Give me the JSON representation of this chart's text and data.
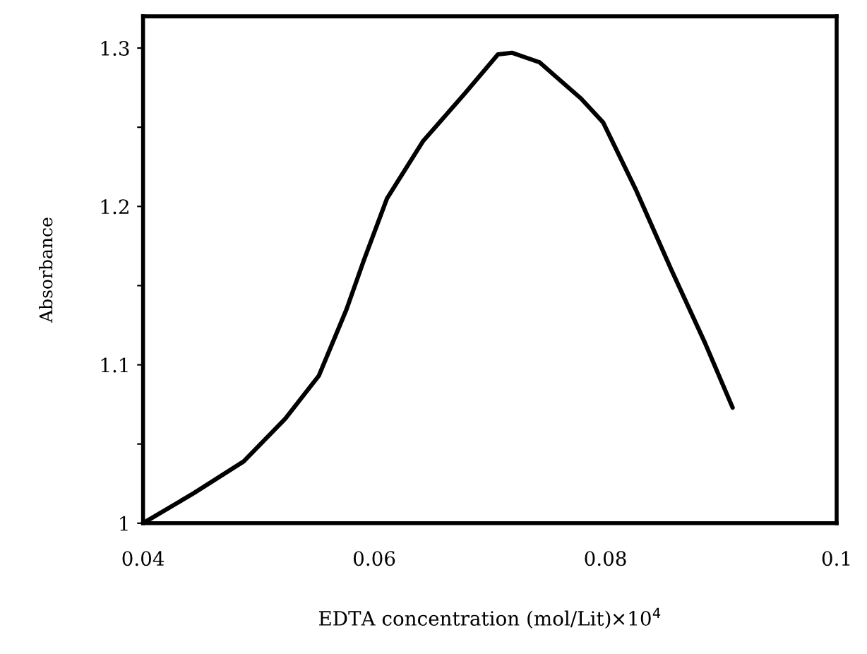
{
  "chart_data": {
    "type": "line",
    "xlabel": "EDTA concentration (mol/Lit)×10$^{4}$",
    "ylabel": "Absorbance",
    "x": [
      0.04,
      0.0444,
      0.0487,
      0.0523,
      0.0552,
      0.0576,
      0.0591,
      0.0611,
      0.0642,
      0.0678,
      0.0707,
      0.0719,
      0.0743,
      0.0779,
      0.0798,
      0.0826,
      0.0857,
      0.0886,
      0.091
    ],
    "series": [
      {
        "color": "#000000",
        "values": [
          1.0,
          1.019,
          1.039,
          1.066,
          1.093,
          1.135,
          1.166,
          1.205,
          1.241,
          1.271,
          1.296,
          1.297,
          1.291,
          1.268,
          1.253,
          1.211,
          1.16,
          1.114,
          1.073
        ]
      }
    ],
    "xlim": [
      0.04,
      0.1
    ],
    "xticks": [
      0.04,
      0.06,
      0.08,
      0.1
    ],
    "ylim": [
      1,
      1.32
    ],
    "yticks": [
      1,
      {
        "value": 1.05,
        "label": null
      },
      1.1,
      {
        "value": 1.15,
        "label": null
      },
      1.2,
      {
        "value": 1.25,
        "label": null
      },
      1.3
    ],
    "grid": false,
    "legend": false,
    "marker": "none",
    "line_style": "solid"
  }
}
